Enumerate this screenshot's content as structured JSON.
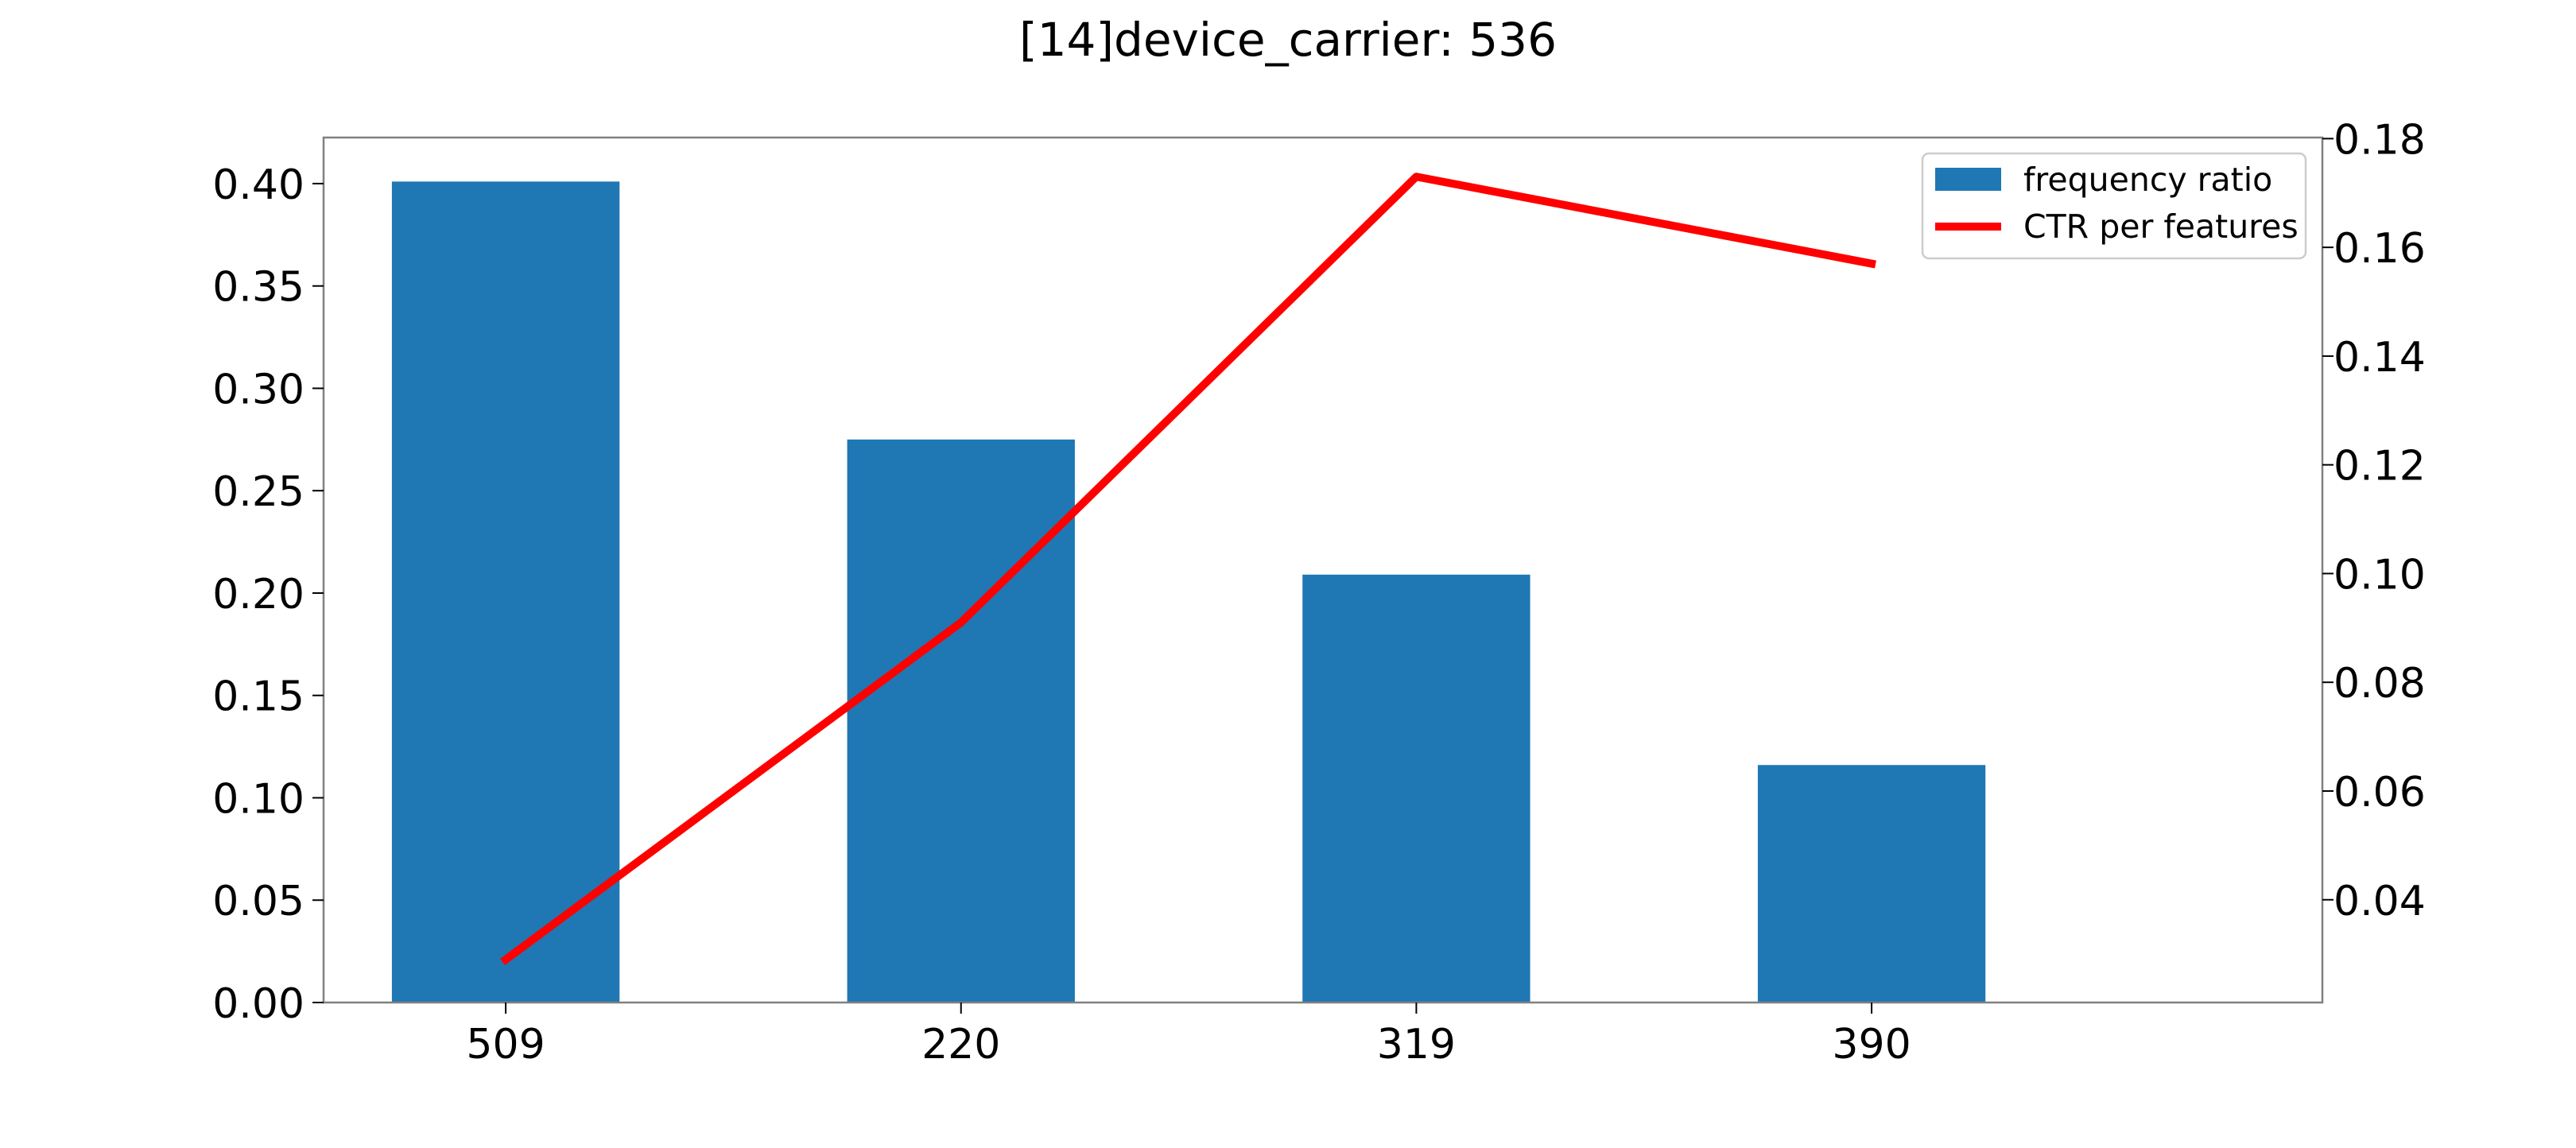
{
  "chart_data": {
    "type": "bar",
    "title": "[14]device_carrier: 536",
    "categories": [
      "509",
      "220",
      "319",
      "390"
    ],
    "series": [
      {
        "name": "frequency ratio",
        "type": "bar",
        "axis": "left",
        "values": [
          0.401,
          0.275,
          0.209,
          0.116
        ],
        "color": "#1f77b4"
      },
      {
        "name": "CTR per features",
        "type": "line",
        "axis": "right",
        "values": [
          0.029,
          0.091,
          0.173,
          0.157
        ],
        "color": "#ff0000"
      }
    ],
    "y_left": {
      "range": [
        0,
        0.4225
      ],
      "ticks": [
        "0.00",
        "0.05",
        "0.10",
        "0.15",
        "0.20",
        "0.25",
        "0.30",
        "0.35",
        "0.40"
      ]
    },
    "y_right": {
      "range": [
        0.0211,
        0.1802
      ],
      "ticks": [
        "0.04",
        "0.06",
        "0.08",
        "0.10",
        "0.12",
        "0.14",
        "0.16",
        "0.18"
      ]
    },
    "x_range": [
      -0.4,
      3.99
    ],
    "grid": false,
    "legend_position": "top-right"
  }
}
